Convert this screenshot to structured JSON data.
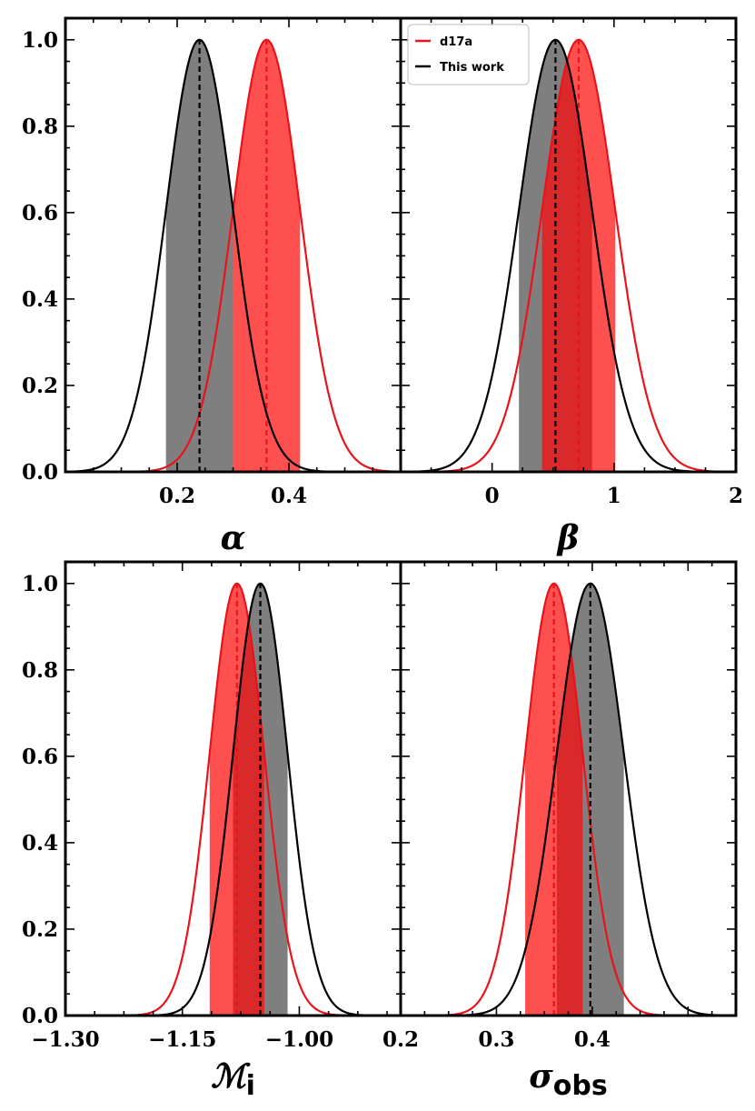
{
  "colors": {
    "d17a": "#e8141a",
    "this_work": "#000000",
    "d17a_fill": "#ff5050",
    "this_work_fill": "#7f7f7f",
    "overlap_fill": "#d9292b"
  },
  "legend": {
    "placement": "upper-right of top-right panel",
    "entries": [
      {
        "label": "d17a",
        "color": "#e8141a"
      },
      {
        "label": "This work",
        "color": "#000000"
      }
    ]
  },
  "chart_data": [
    {
      "type": "area",
      "name": "alpha",
      "xlabel": "α",
      "xlabel_sub": "",
      "xlim": [
        0.0,
        0.6
      ],
      "ylim": [
        0.0,
        1.05
      ],
      "xticks": [
        0.2,
        0.4
      ],
      "xtick_labels": [
        "0.2",
        "0.4"
      ],
      "yticks": [
        0.0,
        0.2,
        0.4,
        0.6,
        0.8,
        1.0
      ],
      "ytick_labels": [
        "0.0",
        "0.2",
        "0.4",
        "0.6",
        "0.8",
        "1.0"
      ],
      "series": [
        {
          "name": "d17a",
          "mean": 0.36,
          "sigma": 0.06,
          "band": [
            0.3,
            0.42
          ]
        },
        {
          "name": "This work",
          "mean": 0.24,
          "sigma": 0.06,
          "band": [
            0.18,
            0.3
          ]
        }
      ]
    },
    {
      "type": "area",
      "name": "beta",
      "xlabel": "β",
      "xlabel_sub": "",
      "xlim": [
        -0.75,
        2.0
      ],
      "ylim": [
        0.0,
        1.05
      ],
      "xticks": [
        0,
        1,
        2
      ],
      "xtick_labels": [
        "0",
        "1",
        "2"
      ],
      "yticks": [
        0.0,
        0.2,
        0.4,
        0.6,
        0.8,
        1.0
      ],
      "ytick_labels": [
        "",
        "",
        "",
        "",
        "",
        ""
      ],
      "series": [
        {
          "name": "d17a",
          "mean": 0.71,
          "sigma": 0.3,
          "band": [
            0.41,
            1.01
          ]
        },
        {
          "name": "This work",
          "mean": 0.52,
          "sigma": 0.3,
          "band": [
            0.22,
            0.82
          ]
        }
      ]
    },
    {
      "type": "area",
      "name": "M_i",
      "xlabel": "ℳ",
      "xlabel_sub": "i",
      "xlim": [
        -1.3,
        -0.87
      ],
      "ylim": [
        0.0,
        1.05
      ],
      "xticks": [
        -1.3,
        -1.15,
        -1.0
      ],
      "xtick_labels": [
        "−1.30",
        "−1.15",
        "−1.00"
      ],
      "yticks": [
        0.0,
        0.2,
        0.4,
        0.6,
        0.8,
        1.0
      ],
      "ytick_labels": [
        "0.0",
        "0.2",
        "0.4",
        "0.6",
        "0.8",
        "1.0"
      ],
      "series": [
        {
          "name": "d17a",
          "mean": -1.08,
          "sigma": 0.035,
          "band": [
            -1.115,
            -1.045
          ]
        },
        {
          "name": "This work",
          "mean": -1.05,
          "sigma": 0.035,
          "band": [
            -1.085,
            -1.015
          ]
        }
      ]
    },
    {
      "type": "area",
      "name": "sigma_obs",
      "xlabel": "σ",
      "xlabel_sub": "obs",
      "xlim": [
        0.2,
        0.55
      ],
      "ylim": [
        0.0,
        1.05
      ],
      "xticks": [
        0.2,
        0.3,
        0.4
      ],
      "xtick_labels": [
        "0.2",
        "0.3",
        "0.4"
      ],
      "yticks": [
        0.0,
        0.2,
        0.4,
        0.6,
        0.8,
        1.0
      ],
      "ytick_labels": [
        "",
        "",
        "",
        "",
        "",
        ""
      ],
      "series": [
        {
          "name": "d17a",
          "mean": 0.36,
          "sigma": 0.03,
          "band": [
            0.33,
            0.39
          ]
        },
        {
          "name": "This work",
          "mean": 0.398,
          "sigma": 0.035,
          "band": [
            0.363,
            0.433
          ]
        }
      ]
    }
  ]
}
